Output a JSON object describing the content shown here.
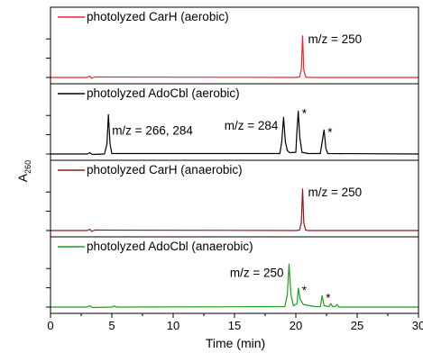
{
  "chart_data": {
    "type": "line",
    "xlabel": "Time (min)",
    "ylabel": "A",
    "ylabel_sub": "260",
    "xlim": [
      0,
      30
    ],
    "xticks": [
      0,
      5,
      10,
      15,
      20,
      25,
      30
    ],
    "y_tick_labels_shown": false,
    "grid": false,
    "legend_placement": "top-left of each panel",
    "series": [
      {
        "name": "photolyzed CarH (aerobic)",
        "color": "#e8262b",
        "baseline": 0.02,
        "points": [
          [
            0,
            0.02
          ],
          [
            3.0,
            0.02
          ],
          [
            3.2,
            0.05
          ],
          [
            3.35,
            0.0
          ],
          [
            3.6,
            0.03
          ],
          [
            20.0,
            0.02
          ],
          [
            20.3,
            0.03
          ],
          [
            20.45,
            0.2
          ],
          [
            20.55,
            0.97
          ],
          [
            20.65,
            0.2
          ],
          [
            20.8,
            0.03
          ],
          [
            21.0,
            0.02
          ],
          [
            30,
            0.02
          ]
        ],
        "annotations": [
          {
            "text": "m/z = 250",
            "x": 20.55,
            "y": 0.97
          }
        ]
      },
      {
        "name": "photolyzed AdoCbl (aerobic)",
        "color": "#000000",
        "baseline": 0.02,
        "points": [
          [
            0,
            0.02
          ],
          [
            3.0,
            0.02
          ],
          [
            3.2,
            0.05
          ],
          [
            3.4,
            0.01
          ],
          [
            4.4,
            0.02
          ],
          [
            4.6,
            0.25
          ],
          [
            4.72,
            0.92
          ],
          [
            4.85,
            0.25
          ],
          [
            5.0,
            0.03
          ],
          [
            18.7,
            0.03
          ],
          [
            18.85,
            0.3
          ],
          [
            19.0,
            0.86
          ],
          [
            19.15,
            0.3
          ],
          [
            19.3,
            0.1
          ],
          [
            19.5,
            0.05
          ],
          [
            20.0,
            0.06
          ],
          [
            20.08,
            0.5
          ],
          [
            20.2,
            1.0
          ],
          [
            20.32,
            0.4
          ],
          [
            20.5,
            0.06
          ],
          [
            21.0,
            0.03
          ],
          [
            22.0,
            0.03
          ],
          [
            22.15,
            0.3
          ],
          [
            22.3,
            0.57
          ],
          [
            22.45,
            0.15
          ],
          [
            22.6,
            0.03
          ],
          [
            30,
            0.02
          ]
        ],
        "annotations": [
          {
            "text": "m/z = 266, 284",
            "x": 4.72,
            "y": 0.92
          },
          {
            "text": "m/z = 284",
            "x": 19.0,
            "y": 0.86
          },
          {
            "text": "*",
            "x": 20.2,
            "y": 1.0
          },
          {
            "text": "*",
            "x": 22.3,
            "y": 0.57
          }
        ]
      },
      {
        "name": "photolyzed CarH (anaerobic)",
        "color": "#8b1a1a",
        "baseline": 0.02,
        "points": [
          [
            0,
            0.02
          ],
          [
            3.0,
            0.02
          ],
          [
            3.2,
            0.05
          ],
          [
            3.35,
            0.0
          ],
          [
            3.6,
            0.03
          ],
          [
            20.0,
            0.02
          ],
          [
            20.3,
            0.03
          ],
          [
            20.45,
            0.2
          ],
          [
            20.55,
            0.97
          ],
          [
            20.65,
            0.2
          ],
          [
            20.8,
            0.03
          ],
          [
            21.0,
            0.02
          ],
          [
            30,
            0.02
          ]
        ],
        "annotations": [
          {
            "text": "m/z = 250",
            "x": 20.55,
            "y": 0.97
          }
        ]
      },
      {
        "name": "photolyzed AdoCbl (anaerobic)",
        "color": "#1b9e1b",
        "baseline": 0.02,
        "points": [
          [
            0,
            0.02
          ],
          [
            3.0,
            0.02
          ],
          [
            3.2,
            0.05
          ],
          [
            3.4,
            0.01
          ],
          [
            5.0,
            0.02
          ],
          [
            5.2,
            0.04
          ],
          [
            5.4,
            0.02
          ],
          [
            19.1,
            0.03
          ],
          [
            19.3,
            0.3
          ],
          [
            19.45,
            1.0
          ],
          [
            19.6,
            0.3
          ],
          [
            19.8,
            0.05
          ],
          [
            20.1,
            0.1
          ],
          [
            20.2,
            0.45
          ],
          [
            20.35,
            0.2
          ],
          [
            20.6,
            0.08
          ],
          [
            21.0,
            0.06
          ],
          [
            21.6,
            0.03
          ],
          [
            22.0,
            0.03
          ],
          [
            22.15,
            0.28
          ],
          [
            22.3,
            0.05
          ],
          [
            22.7,
            0.03
          ],
          [
            22.85,
            0.1
          ],
          [
            23.0,
            0.03
          ],
          [
            23.2,
            0.03
          ],
          [
            23.35,
            0.08
          ],
          [
            23.5,
            0.02
          ],
          [
            30,
            0.02
          ]
        ],
        "annotations": [
          {
            "text": "m/z = 250",
            "x": 19.45,
            "y": 1.0
          },
          {
            "text": "*",
            "x": 20.2,
            "y": 0.45
          },
          {
            "text": "*",
            "x": 22.15,
            "y": 0.28
          }
        ]
      }
    ]
  }
}
